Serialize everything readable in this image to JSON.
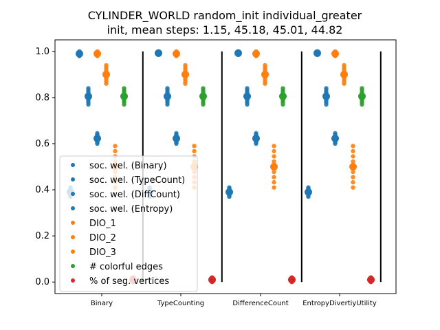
{
  "chart_data": {
    "type": "scatter",
    "title": "CYLINDER_WORLD random_init individual_greater",
    "subtitle": "init, mean steps: 1.15, 45.18, 45.01, 44.82",
    "categories": [
      "Binary",
      "TypeCounting",
      "DifferenceCount",
      "EntropyDivertiyUtility"
    ],
    "ylim": [
      -0.05,
      1.05
    ],
    "yticks": [
      "0.0",
      "0.2",
      "0.4",
      "0.6",
      "0.8",
      "1.0"
    ],
    "ytick_values": [
      0.0,
      0.2,
      0.4,
      0.6,
      0.8,
      1.0
    ],
    "grid": false,
    "legend_position": "lower-left",
    "series": [
      {
        "name": "soc. wel. (Binary)",
        "color": "#1f77b4",
        "offset": -0.5,
        "ranges": [
          [
            0.98,
            1.0
          ],
          [
            0.985,
            1.0
          ],
          [
            0.985,
            1.0
          ],
          [
            0.985,
            1.0
          ]
        ]
      },
      {
        "name": "soc. wel. (TypeCount)",
        "color": "#1f77b4",
        "offset": -0.3,
        "ranges": [
          [
            0.77,
            0.84
          ],
          [
            0.77,
            0.84
          ],
          [
            0.77,
            0.84
          ],
          [
            0.77,
            0.84
          ]
        ]
      },
      {
        "name": "soc. wel. (DiffCount)",
        "color": "#1f77b4",
        "offset": -0.1,
        "ranges": [
          [
            0.6,
            0.645
          ],
          [
            0.6,
            0.645
          ],
          [
            0.6,
            0.645
          ],
          [
            0.6,
            0.645
          ]
        ]
      },
      {
        "name": "soc. wel. (Entropy)",
        "color": "#1f77b4",
        "offset": -0.7,
        "ranges": [
          [
            0.37,
            0.41
          ],
          [
            0.37,
            0.41
          ],
          [
            0.37,
            0.41
          ],
          [
            0.37,
            0.41
          ]
        ]
      },
      {
        "name": "DIO_1",
        "color": "#ff7f0e",
        "offset": -0.1,
        "ranges": [
          [
            0.98,
            1.0
          ],
          [
            0.98,
            1.0
          ],
          [
            0.98,
            1.0
          ],
          [
            0.98,
            1.0
          ]
        ]
      },
      {
        "name": "DIO_2",
        "color": "#ff7f0e",
        "offset": 0.1,
        "ranges": [
          [
            0.86,
            0.94
          ],
          [
            0.86,
            0.94
          ],
          [
            0.86,
            0.94
          ],
          [
            0.86,
            0.94
          ]
        ]
      },
      {
        "name": "DIO_3",
        "color": "#ff7f0e",
        "offset": 0.3,
        "ranges": [
          [
            0.41,
            0.59
          ],
          [
            0.41,
            0.59
          ],
          [
            0.41,
            0.59
          ],
          [
            0.41,
            0.59
          ]
        ]
      },
      {
        "name": "# colorful edges",
        "color": "#2ca02c",
        "offset": 0.5,
        "ranges": [
          [
            0.77,
            0.84
          ],
          [
            0.77,
            0.84
          ],
          [
            0.77,
            0.84
          ],
          [
            0.77,
            0.84
          ]
        ]
      },
      {
        "name": "% of seg. vertices",
        "color": "#d62728",
        "offset": 0.7,
        "ranges": [
          [
            0.0,
            0.02
          ],
          [
            0.0,
            0.02
          ],
          [
            0.0,
            0.02
          ],
          [
            0.0,
            0.02
          ]
        ]
      }
    ],
    "separators_after_category": [
      0,
      1,
      2,
      3
    ]
  }
}
